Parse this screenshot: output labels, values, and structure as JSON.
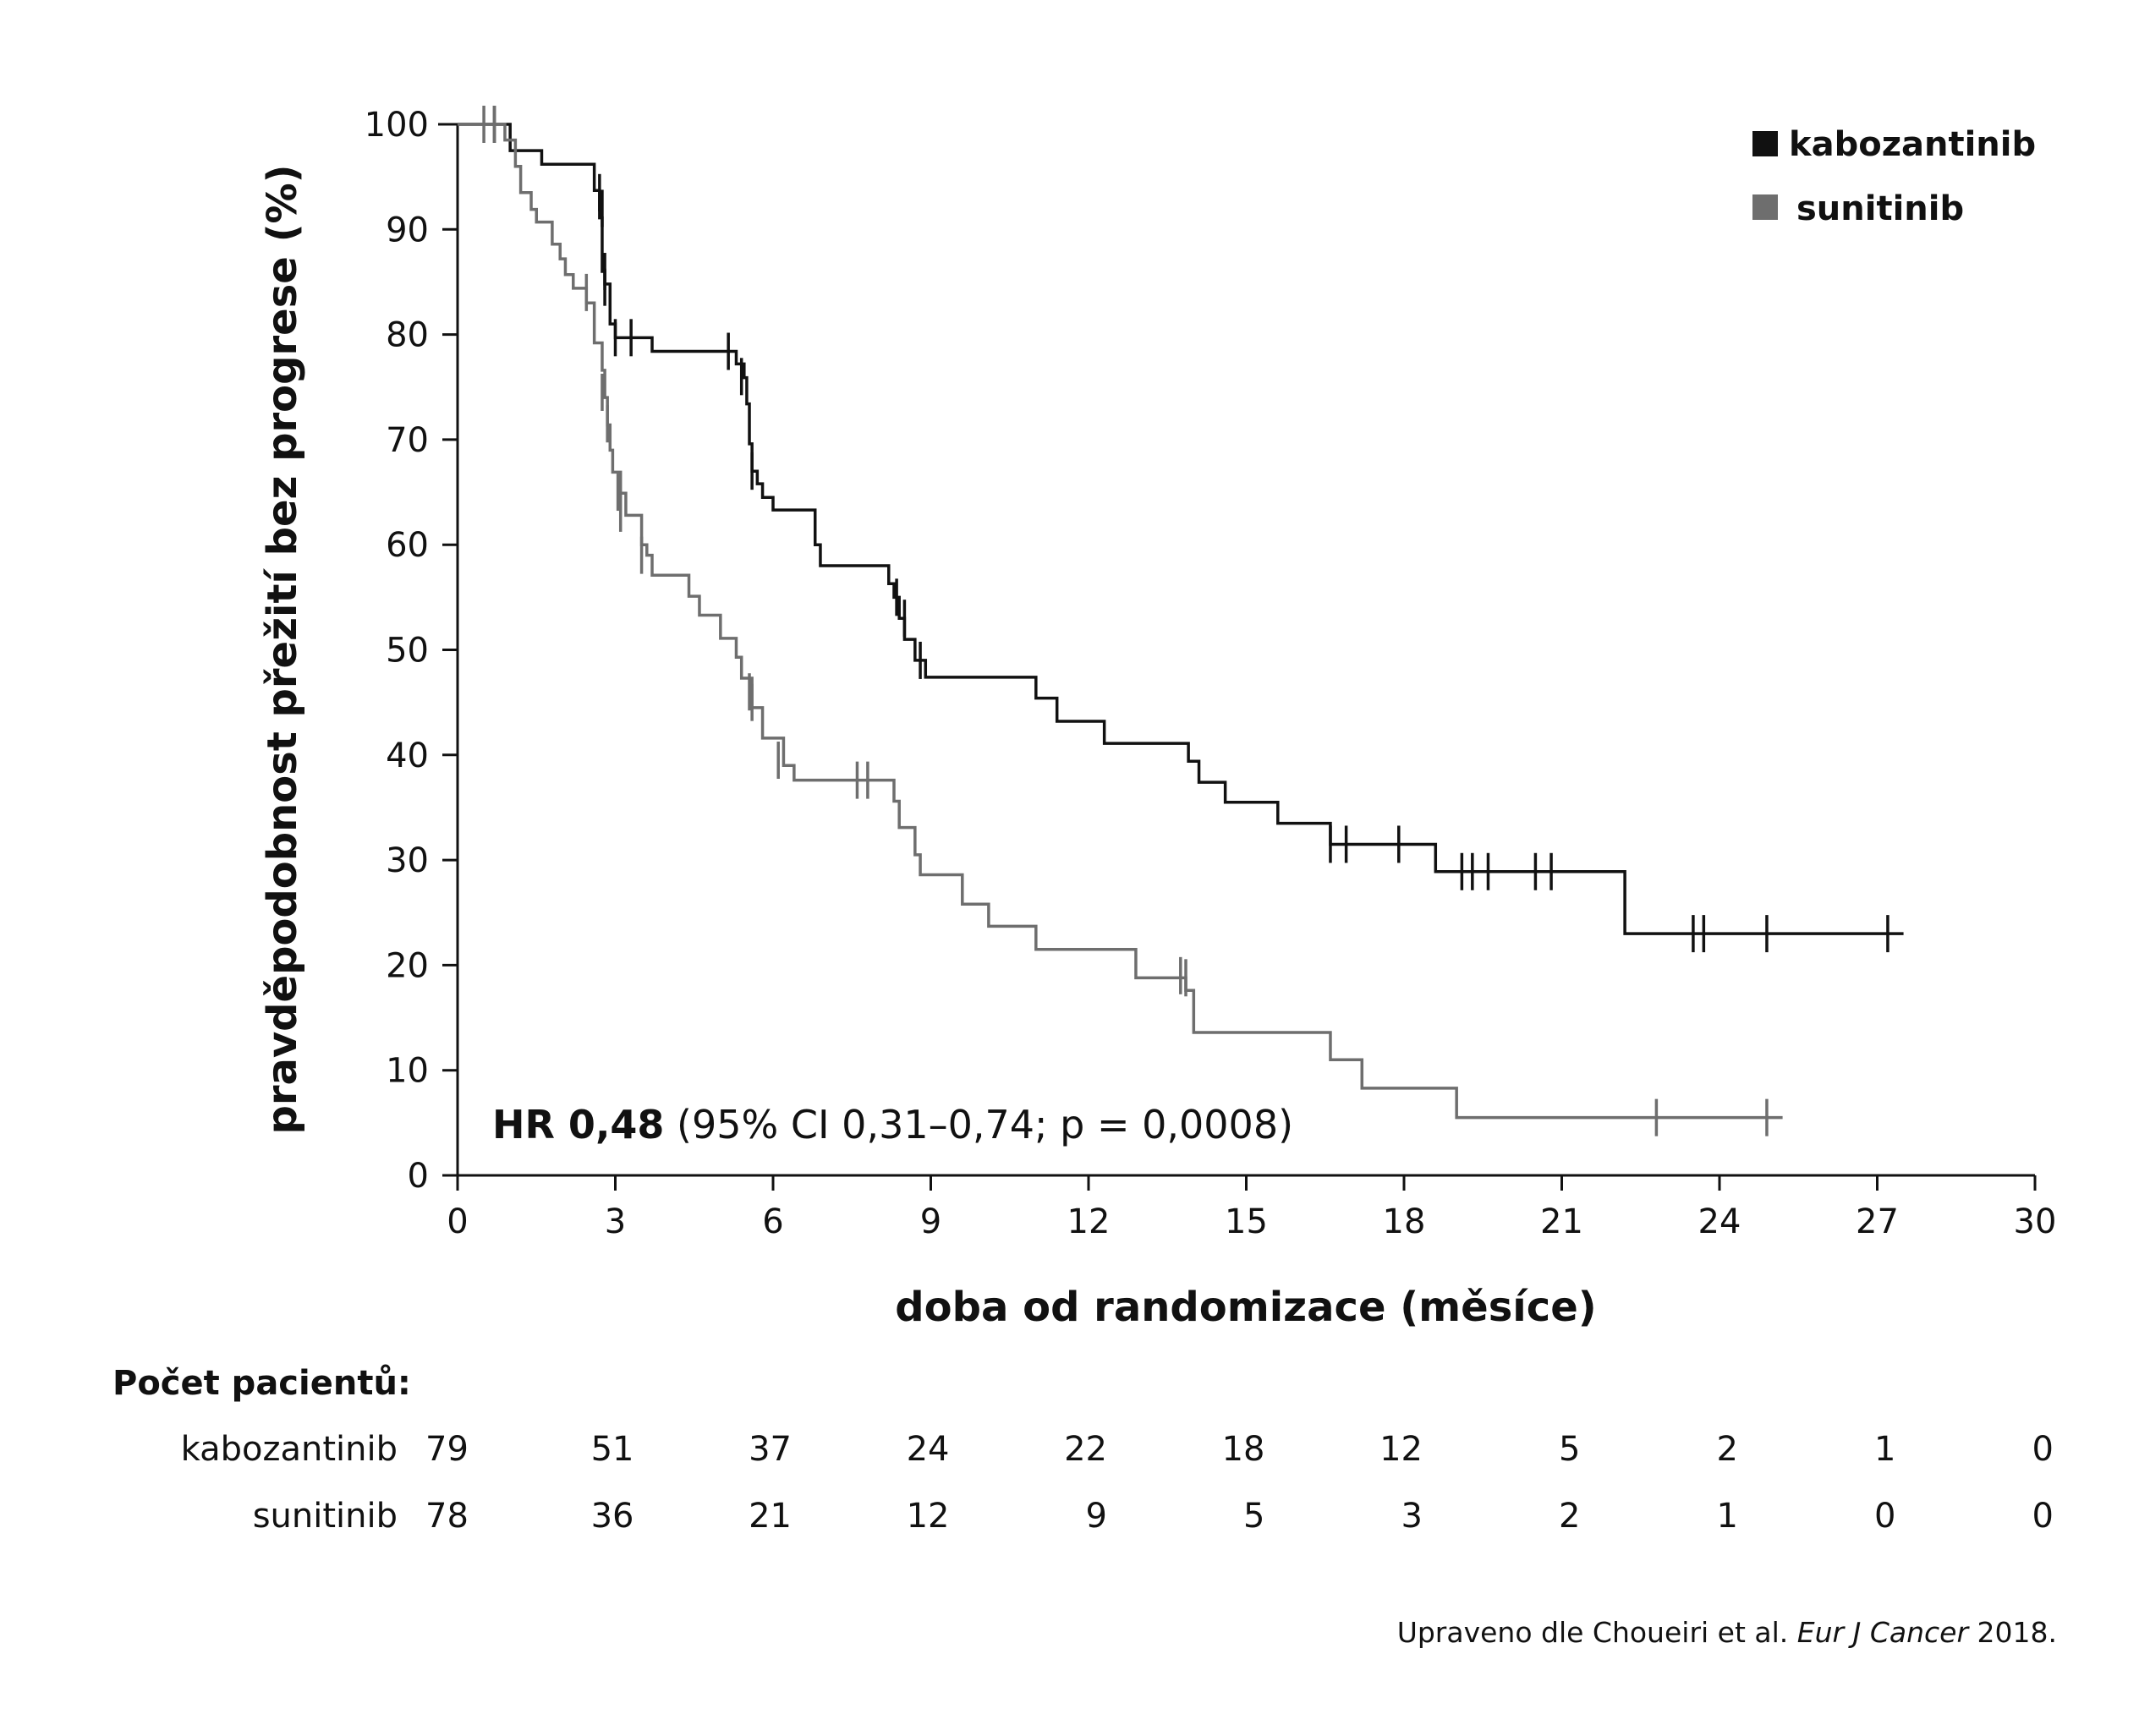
{
  "chart_data": {
    "type": "line",
    "subtype": "kaplan-meier",
    "title": "",
    "xlabel": "doba od randomizace (měsíce)",
    "ylabel": "pravděpodobnost přežití bez progrese (%)",
    "xlim": [
      0,
      30
    ],
    "ylim": [
      0,
      100
    ],
    "xticks": [
      "0",
      "3",
      "6",
      "9",
      "12",
      "15",
      "18",
      "21",
      "24",
      "27",
      "30"
    ],
    "yticks": [
      "0",
      "10",
      "20",
      "30",
      "40",
      "50",
      "60",
      "70",
      "80",
      "90",
      "100"
    ],
    "legend_position": "top-right",
    "series": [
      {
        "name": "kabozantinib",
        "color": "#111111",
        "steps": [
          [
            0,
            100
          ],
          [
            1.0,
            97.5
          ],
          [
            1.6,
            96.2
          ],
          [
            2.6,
            93.7
          ],
          [
            2.7,
            91.1
          ],
          [
            2.75,
            86.0
          ],
          [
            2.8,
            84.8
          ],
          [
            2.9,
            81.0
          ],
          [
            3.0,
            79.7
          ],
          [
            3.7,
            78.4
          ],
          [
            5.3,
            77.2
          ],
          [
            5.45,
            75.9
          ],
          [
            5.5,
            73.4
          ],
          [
            5.55,
            69.6
          ],
          [
            5.6,
            67.0
          ],
          [
            5.7,
            65.8
          ],
          [
            5.8,
            64.5
          ],
          [
            6.0,
            63.3
          ],
          [
            6.8,
            60.0
          ],
          [
            6.9,
            58.0
          ],
          [
            8.2,
            56.3
          ],
          [
            8.3,
            55.0
          ],
          [
            8.4,
            53.0
          ],
          [
            8.5,
            51.0
          ],
          [
            8.7,
            49.0
          ],
          [
            8.9,
            47.4
          ],
          [
            11.0,
            45.4
          ],
          [
            11.4,
            43.2
          ],
          [
            12.3,
            41.1
          ],
          [
            13.9,
            39.4
          ],
          [
            14.1,
            37.4
          ],
          [
            14.6,
            35.5
          ],
          [
            15.6,
            33.5
          ],
          [
            16.6,
            31.5
          ],
          [
            18.6,
            28.9
          ],
          [
            22.2,
            23.0
          ],
          [
            27.5,
            23.0
          ]
        ],
        "censored": [
          [
            0.7,
            100
          ],
          [
            2.7,
            93.5
          ],
          [
            2.75,
            92.0
          ],
          [
            2.8,
            86.0
          ],
          [
            2.8,
            84.5
          ],
          [
            3.0,
            79.7
          ],
          [
            3.3,
            79.7
          ],
          [
            5.15,
            78.4
          ],
          [
            5.4,
            76.0
          ],
          [
            5.6,
            67.0
          ],
          [
            8.35,
            55.0
          ],
          [
            8.5,
            53.0
          ],
          [
            8.8,
            49.0
          ],
          [
            16.6,
            31.5
          ],
          [
            16.9,
            31.5
          ],
          [
            17.9,
            31.5
          ],
          [
            19.1,
            28.9
          ],
          [
            19.3,
            28.9
          ],
          [
            19.6,
            28.9
          ],
          [
            20.5,
            28.9
          ],
          [
            20.8,
            28.9
          ],
          [
            23.5,
            23.0
          ],
          [
            23.7,
            23.0
          ],
          [
            24.9,
            23.0
          ],
          [
            27.2,
            23.0
          ]
        ]
      },
      {
        "name": "sunitinib",
        "color": "#6e6e6e",
        "steps": [
          [
            0,
            100
          ],
          [
            0.9,
            98.5
          ],
          [
            1.1,
            96.0
          ],
          [
            1.2,
            93.5
          ],
          [
            1.4,
            91.9
          ],
          [
            1.5,
            90.7
          ],
          [
            1.8,
            88.6
          ],
          [
            1.95,
            87.2
          ],
          [
            2.05,
            85.7
          ],
          [
            2.2,
            84.4
          ],
          [
            2.45,
            83.0
          ],
          [
            2.6,
            79.2
          ],
          [
            2.75,
            76.6
          ],
          [
            2.8,
            74.0
          ],
          [
            2.85,
            71.4
          ],
          [
            2.9,
            69.0
          ],
          [
            2.95,
            66.9
          ],
          [
            3.1,
            64.9
          ],
          [
            3.2,
            62.8
          ],
          [
            3.5,
            60.0
          ],
          [
            3.6,
            59.0
          ],
          [
            3.7,
            57.1
          ],
          [
            4.4,
            55.1
          ],
          [
            4.6,
            53.3
          ],
          [
            5.0,
            51.1
          ],
          [
            5.3,
            49.3
          ],
          [
            5.4,
            47.3
          ],
          [
            5.6,
            44.5
          ],
          [
            5.8,
            41.6
          ],
          [
            6.2,
            39.0
          ],
          [
            6.4,
            37.6
          ],
          [
            8.3,
            35.6
          ],
          [
            8.4,
            33.1
          ],
          [
            8.7,
            30.5
          ],
          [
            8.8,
            28.6
          ],
          [
            9.6,
            25.8
          ],
          [
            10.1,
            23.7
          ],
          [
            11.0,
            21.5
          ],
          [
            12.9,
            18.8
          ],
          [
            13.85,
            17.6
          ],
          [
            14.0,
            13.6
          ],
          [
            16.6,
            11.0
          ],
          [
            17.2,
            8.3
          ],
          [
            19.0,
            5.5
          ],
          [
            25.2,
            5.5
          ]
        ],
        "censored": [
          [
            0.5,
            100
          ],
          [
            0.7,
            100
          ],
          [
            2.45,
            84.0
          ],
          [
            2.75,
            74.5
          ],
          [
            2.85,
            71.5
          ],
          [
            3.05,
            65.0
          ],
          [
            3.1,
            63.0
          ],
          [
            3.5,
            59.0
          ],
          [
            5.55,
            46.0
          ],
          [
            5.6,
            45.0
          ],
          [
            6.1,
            39.5
          ],
          [
            7.6,
            37.6
          ],
          [
            7.8,
            37.6
          ],
          [
            13.75,
            19.0
          ],
          [
            13.85,
            18.8
          ],
          [
            22.8,
            5.5
          ],
          [
            24.9,
            5.5
          ]
        ]
      }
    ],
    "annotation": {
      "bold": "HR 0,48",
      "rest": " (95% CI 0,31–0,74; p = 0,0008)"
    }
  },
  "legend": [
    {
      "label": "kabozantinib",
      "color": "#111111"
    },
    {
      "label": "sunitinib",
      "color": "#6e6e6e"
    }
  ],
  "risk_table": {
    "title": "Počet pacientů:",
    "times": [
      0,
      3,
      6,
      9,
      12,
      15,
      18,
      21,
      24,
      27,
      30
    ],
    "rows": [
      {
        "label": "kabozantinib",
        "values": [
          "79",
          "51",
          "37",
          "24",
          "22",
          "18",
          "12",
          "5",
          "2",
          "1",
          "0"
        ]
      },
      {
        "label": "sunitinib",
        "values": [
          "78",
          "36",
          "21",
          "12",
          "9",
          "5",
          "3",
          "2",
          "1",
          "0",
          "0"
        ]
      }
    ]
  },
  "source": {
    "prefix": "Upraveno dle Choueiri et al. ",
    "journal": "Eur J Cancer",
    "suffix": " 2018."
  }
}
